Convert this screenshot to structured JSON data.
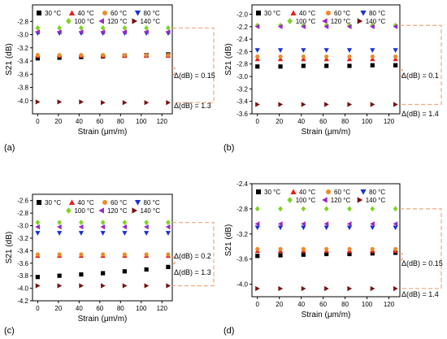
{
  "chart_data": [
    {
      "panel_label": "(a)",
      "type": "scatter",
      "xlabel": "Strain (μm/m)",
      "ylabel": "S21 (dB)",
      "xlim": [
        -5,
        130
      ],
      "ylim": [
        -4.2,
        -2.55
      ],
      "xticks": [
        "0",
        "20",
        "40",
        "60",
        "80",
        "100",
        "120"
      ],
      "yticks": [
        "-2.8",
        "-3.0",
        "-3.2",
        "-3.4",
        "-3.6",
        "-3.8",
        "-4.0"
      ],
      "ytick_values": [
        -2.8,
        -3.0,
        -3.2,
        -3.4,
        -3.6,
        -3.8,
        -4.0
      ],
      "x": [
        0,
        21,
        42,
        63,
        84,
        105,
        126
      ],
      "series": [
        {
          "name": "30 °C",
          "marker": "square",
          "color": "#000000",
          "values": [
            -3.36,
            -3.35,
            -3.34,
            -3.33,
            -3.32,
            -3.31,
            -3.3
          ]
        },
        {
          "name": "40 °C",
          "marker": "triangle-up",
          "color": "#e8201a",
          "values": [
            -3.32,
            -3.32,
            -3.32,
            -3.32,
            -3.32,
            -3.32,
            -3.32
          ]
        },
        {
          "name": "60 °C",
          "marker": "circle",
          "color": "#f08a2a",
          "values": [
            -3.31,
            -3.31,
            -3.31,
            -3.31,
            -3.31,
            -3.31,
            -3.31
          ]
        },
        {
          "name": "80 °C",
          "marker": "triangle-down",
          "color": "#1a2fd6",
          "values": [
            -2.98,
            -2.98,
            -2.98,
            -2.98,
            -2.98,
            -2.98,
            -2.98
          ]
        },
        {
          "name": "100 °C",
          "marker": "diamond",
          "color": "#7ed321",
          "values": [
            -2.9,
            -2.9,
            -2.9,
            -2.9,
            -2.9,
            -2.9,
            -2.9
          ]
        },
        {
          "name": "120 °C",
          "marker": "triangle-left",
          "color": "#9b27c4",
          "values": [
            -2.96,
            -2.96,
            -2.96,
            -2.96,
            -2.96,
            -2.96,
            -2.96
          ]
        },
        {
          "name": "140 °C",
          "marker": "triangle-right",
          "color": "#7a1010",
          "values": [
            -4.02,
            -4.02,
            -4.02,
            -4.03,
            -4.03,
            -4.03,
            -4.03
          ]
        }
      ],
      "annotations": [
        "Δ(dB) = 0.15",
        "Δ(dB) = 1.3"
      ],
      "legend": "top"
    },
    {
      "panel_label": "(b)",
      "type": "scatter",
      "xlabel": "Strain (μm/m)",
      "ylabel": "S21 (dB)",
      "xlim": [
        -5,
        130
      ],
      "ylim": [
        -3.6,
        -1.85
      ],
      "xticks": [
        "0",
        "20",
        "40",
        "60",
        "80",
        "100",
        "120"
      ],
      "yticks": [
        "-2.0",
        "-2.2",
        "-2.4",
        "-2.6",
        "-2.8",
        "-3.0",
        "-3.2",
        "-3.4",
        "-3.6"
      ],
      "ytick_values": [
        -2.0,
        -2.2,
        -2.4,
        -2.6,
        -2.8,
        -3.0,
        -3.2,
        -3.4,
        -3.6
      ],
      "x": [
        0,
        21,
        42,
        63,
        84,
        105,
        126
      ],
      "series": [
        {
          "name": "30 °C",
          "marker": "square",
          "color": "#000000",
          "values": [
            -2.84,
            -2.84,
            -2.83,
            -2.83,
            -2.83,
            -2.82,
            -2.82
          ]
        },
        {
          "name": "40 °C",
          "marker": "triangle-up",
          "color": "#e8201a",
          "values": [
            -2.72,
            -2.72,
            -2.72,
            -2.72,
            -2.72,
            -2.72,
            -2.72
          ]
        },
        {
          "name": "60 °C",
          "marker": "circle",
          "color": "#f08a2a",
          "values": [
            -2.68,
            -2.68,
            -2.68,
            -2.68,
            -2.68,
            -2.68,
            -2.68
          ]
        },
        {
          "name": "80 °C",
          "marker": "triangle-down",
          "color": "#1a2fd6",
          "values": [
            -2.58,
            -2.58,
            -2.58,
            -2.58,
            -2.58,
            -2.58,
            -2.58
          ]
        },
        {
          "name": "100 °C",
          "marker": "diamond",
          "color": "#7ed321",
          "values": [
            -2.18,
            -2.18,
            -2.18,
            -2.18,
            -2.18,
            -2.18,
            -2.18
          ]
        },
        {
          "name": "120 °C",
          "marker": "triangle-left",
          "color": "#9b27c4",
          "values": [
            -2.2,
            -2.2,
            -2.2,
            -2.2,
            -2.2,
            -2.2,
            -2.2
          ]
        },
        {
          "name": "140 °C",
          "marker": "triangle-right",
          "color": "#7a1010",
          "values": [
            -3.45,
            -3.45,
            -3.45,
            -3.45,
            -3.45,
            -3.45,
            -3.45
          ]
        }
      ],
      "annotations": [
        "Δ(dB) = 0.1",
        "Δ(dB) = 1.4"
      ],
      "legend": "top"
    },
    {
      "panel_label": "(c)",
      "type": "scatter",
      "xlabel": "Strain (μm/m)",
      "ylabel": "S21 (dB)",
      "xlim": [
        -5,
        130
      ],
      "ylim": [
        -4.2,
        -2.5
      ],
      "xticks": [
        "0",
        "20",
        "40",
        "60",
        "80",
        "100",
        "120"
      ],
      "yticks": [
        "-2.6",
        "-2.8",
        "-3.0",
        "-3.2",
        "-3.4",
        "-3.6",
        "-3.8",
        "-4.0",
        "-4.2"
      ],
      "ytick_values": [
        -2.6,
        -2.8,
        -3.0,
        -3.2,
        -3.4,
        -3.6,
        -3.8,
        -4.0,
        -4.2
      ],
      "x": [
        0,
        21,
        42,
        63,
        84,
        105,
        126
      ],
      "series": [
        {
          "name": "30 °C",
          "marker": "square",
          "color": "#000000",
          "values": [
            -3.82,
            -3.8,
            -3.78,
            -3.76,
            -3.73,
            -3.7,
            -3.66
          ]
        },
        {
          "name": "40 °C",
          "marker": "triangle-up",
          "color": "#e8201a",
          "values": [
            -3.48,
            -3.48,
            -3.48,
            -3.48,
            -3.48,
            -3.48,
            -3.48
          ]
        },
        {
          "name": "60 °C",
          "marker": "circle",
          "color": "#f08a2a",
          "values": [
            -3.46,
            -3.46,
            -3.46,
            -3.46,
            -3.46,
            -3.46,
            -3.46
          ]
        },
        {
          "name": "80 °C",
          "marker": "triangle-down",
          "color": "#1a2fd6",
          "values": [
            -3.12,
            -3.12,
            -3.12,
            -3.12,
            -3.12,
            -3.12,
            -3.12
          ]
        },
        {
          "name": "100 °C",
          "marker": "diamond",
          "color": "#7ed321",
          "values": [
            -2.95,
            -2.95,
            -2.95,
            -2.95,
            -2.95,
            -2.95,
            -2.95
          ]
        },
        {
          "name": "120 °C",
          "marker": "triangle-left",
          "color": "#9b27c4",
          "values": [
            -3.02,
            -3.02,
            -3.02,
            -3.02,
            -3.02,
            -3.02,
            -3.02
          ]
        },
        {
          "name": "140 °C",
          "marker": "triangle-right",
          "color": "#7a1010",
          "values": [
            -3.96,
            -3.96,
            -3.96,
            -3.96,
            -3.96,
            -3.96,
            -3.96
          ]
        }
      ],
      "annotations": [
        "Δ(dB) = 0.2",
        "Δ(dB) = 1.3"
      ],
      "legend": "top"
    },
    {
      "panel_label": "(d)",
      "type": "scatter",
      "xlabel": "Strain (μm/m)",
      "ylabel": "S21 (dB)",
      "xlim": [
        -5,
        130
      ],
      "ylim": [
        -4.2,
        -2.4
      ],
      "xticks": [
        "0",
        "20",
        "40",
        "60",
        "80",
        "100",
        "120"
      ],
      "yticks": [
        "-2.4",
        "-2.8",
        "-3.2",
        "-3.6",
        "-4.0"
      ],
      "ytick_values": [
        -2.4,
        -2.8,
        -3.2,
        -3.6,
        -4.0
      ],
      "x": [
        0,
        21,
        42,
        63,
        84,
        105,
        126
      ],
      "series": [
        {
          "name": "30 °C",
          "marker": "square",
          "color": "#000000",
          "values": [
            -3.55,
            -3.54,
            -3.53,
            -3.52,
            -3.52,
            -3.51,
            -3.5
          ]
        },
        {
          "name": "40 °C",
          "marker": "triangle-up",
          "color": "#e8201a",
          "values": [
            -3.47,
            -3.47,
            -3.47,
            -3.47,
            -3.47,
            -3.47,
            -3.47
          ]
        },
        {
          "name": "60 °C",
          "marker": "circle",
          "color": "#f08a2a",
          "values": [
            -3.44,
            -3.44,
            -3.44,
            -3.44,
            -3.44,
            -3.44,
            -3.44
          ]
        },
        {
          "name": "80 °C",
          "marker": "triangle-down",
          "color": "#1a2fd6",
          "values": [
            -3.1,
            -3.1,
            -3.1,
            -3.1,
            -3.1,
            -3.1,
            -3.1
          ]
        },
        {
          "name": "100 °C",
          "marker": "diamond",
          "color": "#7ed321",
          "values": [
            -2.8,
            -2.8,
            -2.8,
            -2.8,
            -2.8,
            -2.8,
            -2.8
          ]
        },
        {
          "name": "120 °C",
          "marker": "triangle-left",
          "color": "#9b27c4",
          "values": [
            -3.04,
            -3.04,
            -3.04,
            -3.04,
            -3.04,
            -3.04,
            -3.04
          ]
        },
        {
          "name": "140 °C",
          "marker": "triangle-right",
          "color": "#7a1010",
          "values": [
            -4.07,
            -4.07,
            -4.07,
            -4.07,
            -4.07,
            -4.07,
            -4.07
          ]
        }
      ],
      "annotations": [
        "Δ(dB) = 0.15",
        "Δ(dB) = 1.4"
      ],
      "legend": "top"
    }
  ]
}
